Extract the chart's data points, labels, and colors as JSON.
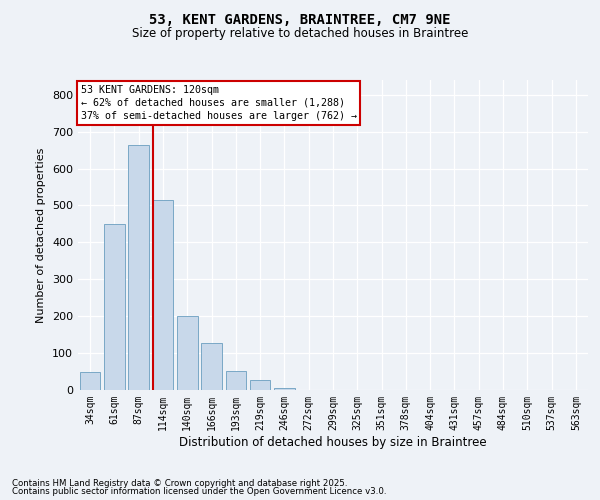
{
  "title_line1": "53, KENT GARDENS, BRAINTREE, CM7 9NE",
  "title_line2": "Size of property relative to detached houses in Braintree",
  "xlabel": "Distribution of detached houses by size in Braintree",
  "ylabel": "Number of detached properties",
  "footnote1": "Contains HM Land Registry data © Crown copyright and database right 2025.",
  "footnote2": "Contains public sector information licensed under the Open Government Licence v3.0.",
  "annotation_line1": "53 KENT GARDENS: 120sqm",
  "annotation_line2": "← 62% of detached houses are smaller (1,288)",
  "annotation_line3": "37% of semi-detached houses are larger (762) →",
  "property_bin_index": 3,
  "bar_color": "#c8d8ea",
  "bar_edgecolor": "#6a9ec0",
  "red_line_color": "#cc0000",
  "annotation_box_edgecolor": "#cc0000",
  "background_color": "#eef2f7",
  "grid_color": "#ffffff",
  "categories": [
    "34sqm",
    "61sqm",
    "87sqm",
    "114sqm",
    "140sqm",
    "166sqm",
    "193sqm",
    "219sqm",
    "246sqm",
    "272sqm",
    "299sqm",
    "325sqm",
    "351sqm",
    "378sqm",
    "404sqm",
    "431sqm",
    "457sqm",
    "484sqm",
    "510sqm",
    "537sqm",
    "563sqm"
  ],
  "values": [
    50,
    450,
    665,
    515,
    200,
    127,
    52,
    28,
    5,
    1,
    0,
    0,
    0,
    0,
    0,
    0,
    0,
    0,
    0,
    0,
    0
  ],
  "ylim": [
    0,
    840
  ],
  "yticks": [
    0,
    100,
    200,
    300,
    400,
    500,
    600,
    700,
    800
  ]
}
